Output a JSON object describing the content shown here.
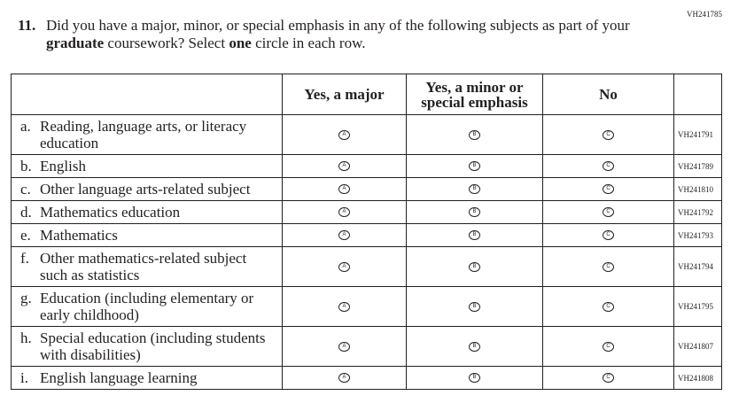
{
  "page_code": "VH241785",
  "question": {
    "number": "11.",
    "text_parts": [
      "Did you have a major, minor, or special emphasis in any of the following subjects as part of your ",
      "graduate",
      " coursework? Select ",
      "one",
      " circle in each row."
    ]
  },
  "table": {
    "headers": [
      "Yes, a major",
      "Yes, a minor or special emphasis",
      "No"
    ],
    "bubble_letters": [
      "A",
      "B",
      "C"
    ],
    "rows": [
      {
        "letter": "a.",
        "label": "Reading, language arts, or literacy education",
        "code": "VH241791"
      },
      {
        "letter": "b.",
        "label": "English",
        "code": "VH241789"
      },
      {
        "letter": "c.",
        "label": "Other language arts-related subject",
        "code": "VH241810"
      },
      {
        "letter": "d.",
        "label": "Mathematics education",
        "code": "VH241792"
      },
      {
        "letter": "e.",
        "label": "Mathematics",
        "code": "VH241793"
      },
      {
        "letter": "f.",
        "label": "Other mathematics-related subject such as statistics",
        "code": "VH241794"
      },
      {
        "letter": "g.",
        "label": "Education (including elementary or early childhood)",
        "code": "VH241795"
      },
      {
        "letter": "h.",
        "label": "Special education (including students with disabilities)",
        "code": "VH241807"
      },
      {
        "letter": "i.",
        "label": "English language learning",
        "code": "VH241808"
      }
    ]
  }
}
